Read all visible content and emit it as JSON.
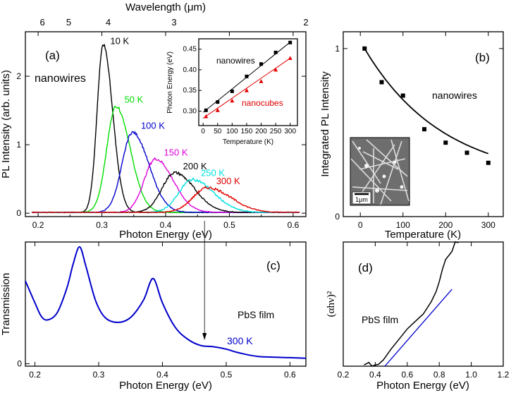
{
  "chart_data": [
    {
      "id": "a",
      "type": "line",
      "panel_label": "(a)",
      "xlabel": "Photon Energy (eV)",
      "ylabel": "PL Intensity (arb. units)",
      "top_axis_label": "Wavelength (μm)",
      "top_ticks": [
        "6",
        "5",
        "4",
        "3",
        "2"
      ],
      "top_tick_energies": [
        0.2067,
        0.248,
        0.31,
        0.4133,
        0.62
      ],
      "xlim": [
        0.18,
        0.62
      ],
      "ylim": [
        -0.05,
        2.65
      ],
      "xticks": [
        "0.2",
        "0.3",
        "0.4",
        "0.5",
        "0.6"
      ],
      "yticks": [
        "0",
        "1",
        "2"
      ],
      "annotation": "nanowires",
      "series": [
        {
          "name": "10 K",
          "color": "#000000",
          "peak_x": 0.302,
          "peak_y": 2.45,
          "fwhm": 0.028
        },
        {
          "name": "50 K",
          "color": "#00dd00",
          "peak_x": 0.322,
          "peak_y": 1.55,
          "fwhm": 0.042
        },
        {
          "name": "100 K",
          "color": "#0000cc",
          "peak_x": 0.348,
          "peak_y": 1.17,
          "fwhm": 0.048
        },
        {
          "name": "150 K",
          "color": "#dd00dd",
          "peak_x": 0.384,
          "peak_y": 0.78,
          "fwhm": 0.052
        },
        {
          "name": "200 K",
          "color": "#000000",
          "peak_x": 0.414,
          "peak_y": 0.58,
          "fwhm": 0.058
        },
        {
          "name": "250 K",
          "color": "#00e0e0",
          "peak_x": 0.442,
          "peak_y": 0.48,
          "fwhm": 0.062
        },
        {
          "name": "300 K",
          "color": "#e00000",
          "peak_x": 0.466,
          "peak_y": 0.36,
          "fwhm": 0.068
        }
      ]
    },
    {
      "id": "a-inset",
      "type": "scatter",
      "xlabel": "Temperature (K)",
      "ylabel": "Photon Energy (eV)",
      "xlim": [
        -15,
        325
      ],
      "ylim": [
        0.265,
        0.475
      ],
      "xticks": [
        "0",
        "50",
        "100",
        "150",
        "200",
        "250",
        "300"
      ],
      "yticks": [
        "0.30",
        "0.35",
        "0.40",
        "0.45"
      ],
      "series": [
        {
          "name": "nanowires",
          "color": "#000000",
          "marker": "square",
          "x": [
            10,
            50,
            100,
            150,
            200,
            250,
            300
          ],
          "y": [
            0.302,
            0.322,
            0.348,
            0.384,
            0.414,
            0.442,
            0.466
          ],
          "fit": [
            0.297,
            0.467
          ]
        },
        {
          "name": "nanocubes",
          "color": "#e00000",
          "marker": "triangle",
          "x": [
            10,
            50,
            100,
            150,
            200,
            250,
            300
          ],
          "y": [
            0.287,
            0.302,
            0.325,
            0.35,
            0.372,
            0.4,
            0.428
          ],
          "fit": [
            0.283,
            0.428
          ]
        }
      ]
    },
    {
      "id": "b",
      "type": "scatter",
      "panel_label": "(b)",
      "xlabel": "Temperature (K)",
      "ylabel": "Integrated PL Intensity",
      "xlim": [
        -40,
        335
      ],
      "ylim": [
        0,
        1.1
      ],
      "xticks": [
        "0",
        "100",
        "200",
        "300"
      ],
      "yticks": [
        "0",
        "1"
      ],
      "annotation": "nanowires",
      "scale_bar": "1μm",
      "series": [
        {
          "name": "nanowires",
          "color": "#000000",
          "marker": "square",
          "x": [
            10,
            50,
            100,
            150,
            200,
            250,
            300
          ],
          "y": [
            1.0,
            0.8,
            0.72,
            0.52,
            0.44,
            0.38,
            0.32
          ],
          "fit_decay": 1.3
        }
      ]
    },
    {
      "id": "c",
      "type": "line",
      "panel_label": "(c)",
      "xlabel": "Photon Energy (eV)",
      "ylabel": "Transmission",
      "xlim": [
        0.185,
        0.625
      ],
      "ylim": [
        -0.02,
        1.0
      ],
      "xticks": [
        "0.2",
        "0.3",
        "0.4",
        "0.5",
        "0.6"
      ],
      "yticks": [
        "0"
      ],
      "annotation": "PbS film",
      "curve_label": "300 K",
      "series": [
        {
          "name": "300 K",
          "color": "#0000cc",
          "x": [
            0.185,
            0.2,
            0.21,
            0.22,
            0.235,
            0.25,
            0.26,
            0.27,
            0.28,
            0.295,
            0.31,
            0.33,
            0.35,
            0.37,
            0.38,
            0.385,
            0.39,
            0.4,
            0.42,
            0.44,
            0.46,
            0.48,
            0.5,
            0.52,
            0.55,
            0.6,
            0.625
          ],
          "y": [
            0.68,
            0.5,
            0.39,
            0.36,
            0.42,
            0.62,
            0.82,
            0.96,
            0.8,
            0.52,
            0.38,
            0.34,
            0.38,
            0.52,
            0.66,
            0.7,
            0.66,
            0.5,
            0.3,
            0.2,
            0.15,
            0.14,
            0.12,
            0.09,
            0.06,
            0.05,
            0.045
          ]
        }
      ]
    },
    {
      "id": "d",
      "type": "line",
      "panel_label": "(d)",
      "xlabel": "Photon Energy (eV)",
      "ylabel": "(αhν)²",
      "xlim": [
        0.2,
        1.2
      ],
      "ylim": [
        0,
        1
      ],
      "xticks": [
        "0.2",
        "0.4",
        "0.6",
        "0.8",
        "1.0",
        "1.2"
      ],
      "annotation": "PbS film",
      "series": [
        {
          "name": "data",
          "color": "#000000",
          "x": [
            0.33,
            0.36,
            0.38,
            0.4,
            0.42,
            0.45,
            0.5,
            0.55,
            0.6,
            0.65,
            0.7,
            0.75,
            0.78,
            0.8,
            0.82,
            0.84,
            0.86,
            0.88,
            0.9,
            0.92
          ],
          "y": [
            0.01,
            0.03,
            0.0,
            0.01,
            0.015,
            0.05,
            0.14,
            0.22,
            0.3,
            0.36,
            0.42,
            0.52,
            0.6,
            0.68,
            0.78,
            0.86,
            0.9,
            0.94,
            0.98,
            1.0
          ]
        },
        {
          "name": "linear fit",
          "color": "#0000cc",
          "x": [
            0.46,
            0.88
          ],
          "y": [
            0.0,
            0.62
          ]
        }
      ]
    }
  ]
}
